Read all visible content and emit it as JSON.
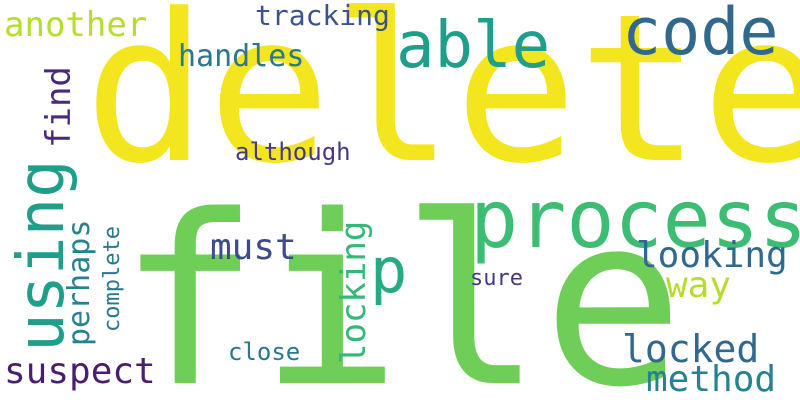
{
  "words": [
    {
      "key": "delete",
      "text": "delete",
      "color": "#f4e61e"
    },
    {
      "key": "file",
      "text": "file",
      "color": "#6ece58"
    },
    {
      "key": "process",
      "text": "process",
      "color": "#3dbc74"
    },
    {
      "key": "code",
      "text": "code",
      "color": "#31688e"
    },
    {
      "key": "able",
      "text": "able",
      "color": "#1f9e89"
    },
    {
      "key": "using",
      "text": "using",
      "color": "#1f9e89"
    },
    {
      "key": "another",
      "text": "another",
      "color": "#b5de2b"
    },
    {
      "key": "tracking",
      "text": "tracking",
      "color": "#3b528b"
    },
    {
      "key": "handles",
      "text": "handles",
      "color": "#2a788e"
    },
    {
      "key": "find",
      "text": "find",
      "color": "#482878"
    },
    {
      "key": "perhaps",
      "text": "perhaps",
      "color": "#26828e"
    },
    {
      "key": "complete",
      "text": "complete",
      "color": "#2a788e"
    },
    {
      "key": "although",
      "text": "although",
      "color": "#443983"
    },
    {
      "key": "must",
      "text": "must",
      "color": "#3e4a89"
    },
    {
      "key": "p",
      "text": "p",
      "color": "#25ab82"
    },
    {
      "key": "locking",
      "text": "locking",
      "color": "#35b779"
    },
    {
      "key": "looking",
      "text": "looking",
      "color": "#31688e"
    },
    {
      "key": "way",
      "text": "way",
      "color": "#b5de2b"
    },
    {
      "key": "sure",
      "text": "sure",
      "color": "#443983"
    },
    {
      "key": "close",
      "text": "close",
      "color": "#2a788e"
    },
    {
      "key": "locked",
      "text": "locked",
      "color": "#31688e"
    },
    {
      "key": "suspect",
      "text": "suspect",
      "color": "#481f70"
    },
    {
      "key": "method",
      "text": "method",
      "color": "#26828e"
    }
  ]
}
